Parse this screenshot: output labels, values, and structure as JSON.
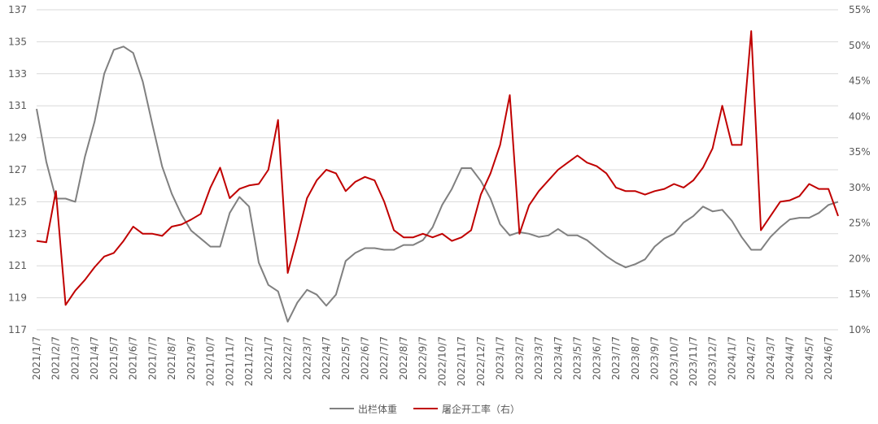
{
  "chart_data": {
    "type": "line",
    "categories": [
      "2021/1/7",
      null,
      "2021/2/7",
      null,
      "2021/3/7",
      null,
      "2021/4/7",
      null,
      "2021/5/7",
      null,
      "2021/6/7",
      null,
      "2021/7/7",
      null,
      "2021/8/7",
      null,
      "2021/9/7",
      null,
      "2021/10/7",
      null,
      "2021/11/7",
      null,
      "2021/12/7",
      null,
      "2022/1/7",
      null,
      "2022/2/7",
      null,
      "2022/3/7",
      null,
      "2022/4/7",
      null,
      "2022/5/7",
      null,
      "2022/6/7",
      null,
      "2022/7/7",
      null,
      "2022/8/7",
      null,
      "2022/9/7",
      null,
      "2022/10/7",
      null,
      "2022/11/7",
      null,
      "2022/12/7",
      null,
      "2023/1/7",
      null,
      "2023/2/7",
      null,
      "2023/3/7",
      null,
      "2023/4/7",
      null,
      "2023/5/7",
      null,
      "2023/6/7",
      null,
      "2023/7/7",
      null,
      "2023/8/7",
      null,
      "2023/9/7",
      null,
      "2023/10/7",
      null,
      "2023/11/7",
      null,
      "2023/12/7",
      null,
      "2024/1/7",
      null,
      "2024/2/7",
      null,
      "2024/3/7",
      null,
      "2024/4/7",
      null,
      "2024/5/7",
      null,
      "2024/6/7",
      null
    ],
    "series": [
      {
        "name": "出栏体重",
        "color": "#808080",
        "values": [
          130.8,
          127.5,
          125.2,
          125.2,
          125.0,
          127.8,
          130,
          133,
          134.5,
          134.7,
          134.3,
          132.5,
          129.8,
          127.2,
          125.5,
          124.2,
          123.2,
          122.7,
          122.2,
          122.2,
          124.3,
          125.3,
          124.7,
          121.2,
          119.8,
          119.4,
          117.5,
          118.7,
          119.5,
          119.2,
          118.5,
          119.2,
          121.3,
          121.8,
          122.1,
          122.1,
          122.0,
          122.0,
          122.3,
          122.3,
          122.6,
          123.4,
          124.8,
          125.8,
          127.1,
          127.1,
          126.3,
          125.2,
          123.6,
          122.9,
          123.1,
          123.0,
          122.8,
          122.9,
          123.3,
          122.9,
          122.9,
          122.6,
          122.1,
          121.6,
          121.2,
          120.9,
          121.1,
          121.4,
          122.2,
          122.7,
          123.0,
          123.7,
          124.1,
          124.7,
          124.4,
          124.5,
          123.8,
          122.8,
          122.0,
          122.0,
          122.8,
          123.4,
          123.9,
          124.0,
          124.0,
          124.3,
          124.8,
          125.0
        ]
      },
      {
        "name": "屠企开工率（右）",
        "color": "#c00000",
        "axis": "y2",
        "values": [
          22.5,
          22.3,
          29.5,
          13.5,
          15.5,
          17,
          18.8,
          20.3,
          20.8,
          22.5,
          24.5,
          23.5,
          23.5,
          23.2,
          24.5,
          24.8,
          25.5,
          26.3,
          30,
          32.8,
          28.5,
          29.8,
          30.3,
          30.5,
          32.5,
          39.5,
          18,
          23,
          28.5,
          31,
          32.5,
          32,
          29.5,
          30.8,
          31.5,
          31,
          28,
          24,
          23,
          23,
          23.5,
          23,
          23.5,
          22.5,
          23,
          24,
          29,
          32,
          36,
          43,
          23.5,
          27.5,
          29.5,
          31,
          32.5,
          33.5,
          34.5,
          33.5,
          33,
          32,
          30,
          29.5,
          29.5,
          29,
          29.5,
          29.8,
          30.5,
          30,
          31,
          32.8,
          35.5,
          41.5,
          36,
          36,
          52,
          24,
          26,
          28,
          28.2,
          28.8,
          30.5,
          29.8,
          29.8,
          26
        ]
      }
    ],
    "ylim": [
      117,
      137
    ],
    "yticks": [
      117,
      119,
      121,
      123,
      125,
      127,
      129,
      131,
      133,
      135,
      137
    ],
    "y2lim": [
      10,
      55
    ],
    "y2ticks": [
      {
        "value": 10,
        "label": "10%"
      },
      {
        "value": 15,
        "label": "15%"
      },
      {
        "value": 20,
        "label": "20%"
      },
      {
        "value": 25,
        "label": "25%"
      },
      {
        "value": 30,
        "label": "30%"
      },
      {
        "value": 35,
        "label": "35%"
      },
      {
        "value": 40,
        "label": "40%"
      },
      {
        "value": 45,
        "label": "45%"
      },
      {
        "value": 50,
        "label": "50%"
      },
      {
        "value": 55,
        "label": "55%"
      }
    ],
    "grid": true,
    "legend": "bottom"
  }
}
